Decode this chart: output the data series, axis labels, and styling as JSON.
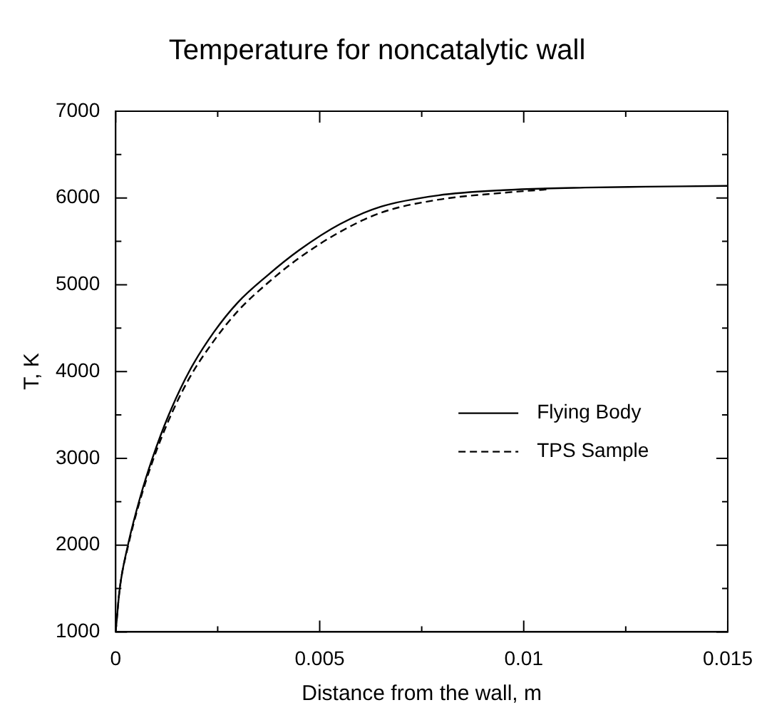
{
  "chart_data": {
    "type": "line",
    "title": "Temperature for noncatalytic wall",
    "xlabel": "Distance from the wall, m",
    "ylabel": "T, K",
    "xlim": [
      0,
      0.015
    ],
    "xticks": [
      0,
      0.005,
      0.01,
      0.015
    ],
    "ylim": [
      1000,
      7000
    ],
    "yticks": [
      1000,
      2000,
      3000,
      4000,
      5000,
      6000,
      7000
    ],
    "grid": false,
    "legend": "right",
    "marker": "none",
    "series": [
      {
        "name": "Flying Body",
        "color": "#000000",
        "line_style": "solid",
        "x": [
          0,
          0.0001,
          0.0003,
          0.0006,
          0.0009,
          0.0013,
          0.0018,
          0.0024,
          0.003,
          0.0037,
          0.0045,
          0.0055,
          0.0065,
          0.0079,
          0.0095,
          0.0115,
          0.013,
          0.015
        ],
        "values": [
          1000,
          1500,
          2000,
          2550,
          3000,
          3500,
          4000,
          4450,
          4800,
          5100,
          5400,
          5700,
          5900,
          6030,
          6090,
          6120,
          6130,
          6140
        ]
      },
      {
        "name": "TPS Sample",
        "color": "#000000",
        "line_style": "dashed",
        "x": [
          0,
          0.0001,
          0.0003,
          0.0006,
          0.0009,
          0.0013,
          0.0018,
          0.0024,
          0.003,
          0.0037,
          0.0045,
          0.0055,
          0.0065,
          0.0079,
          0.0095,
          0.0106
        ],
        "values": [
          1000,
          1500,
          1980,
          2520,
          2960,
          3440,
          3920,
          4350,
          4700,
          5010,
          5310,
          5610,
          5830,
          5980,
          6060,
          6100
        ]
      }
    ]
  }
}
